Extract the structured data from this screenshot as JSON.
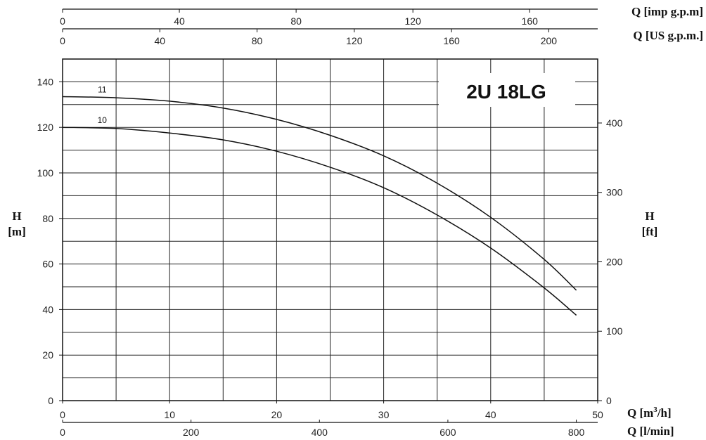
{
  "chart_data": {
    "type": "line",
    "title": "2U 18LG",
    "xlabel": "Q [m³/h]",
    "ylabel": "H [m]",
    "x_unit_label": "Q [m",
    "x_unit_sup": "3",
    "x_unit_tail": "/h]",
    "y_unit_name": "H",
    "y_unit_units": "[m]",
    "xlim": [
      0,
      50
    ],
    "ylim": [
      0,
      150
    ],
    "x_ticks": [
      0,
      10,
      20,
      30,
      40,
      50
    ],
    "y_ticks": [
      0,
      20,
      40,
      60,
      80,
      100,
      120,
      140
    ],
    "grid": true,
    "secondary_axes": {
      "imp_gpm": {
        "label": "Q [imp g.p.m]",
        "ticks": [
          0,
          40,
          80,
          120,
          160
        ]
      },
      "us_gpm": {
        "label": "Q [US g.p.m.]",
        "ticks": [
          0,
          40,
          80,
          120,
          160,
          200
        ]
      },
      "l_min": {
        "label": "Q [l/min]",
        "ticks": [
          0,
          200,
          400,
          600,
          800
        ]
      },
      "ft": {
        "name": "H",
        "units": "[ft]",
        "ticks": [
          0,
          100,
          200,
          300,
          400
        ]
      }
    },
    "series": [
      {
        "name": "11",
        "x": [
          0,
          5,
          10,
          15,
          20,
          25,
          30,
          35,
          40,
          45,
          48
        ],
        "y": [
          133.5,
          133,
          131.5,
          128.5,
          123.5,
          116.5,
          107.5,
          95.5,
          80.5,
          62,
          48.5
        ]
      },
      {
        "name": "10",
        "x": [
          0,
          5,
          10,
          15,
          20,
          25,
          30,
          35,
          40,
          45,
          48
        ],
        "y": [
          120,
          119.5,
          117.5,
          114.5,
          109.5,
          102.5,
          93.5,
          81.5,
          67,
          49.5,
          37.5
        ]
      }
    ]
  }
}
